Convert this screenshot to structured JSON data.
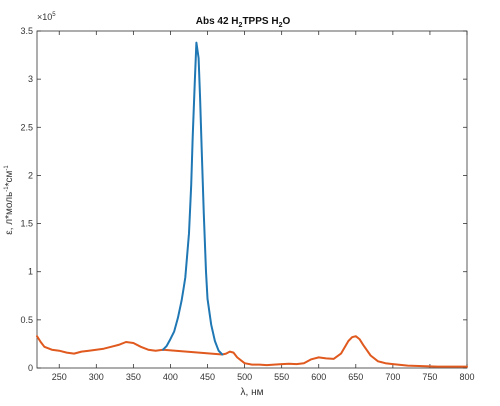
{
  "chart_data": {
    "type": "line",
    "title": {
      "prefix": "Abs 42 H",
      "sub1": "2",
      "middle": "TPPS H",
      "sub2": "2",
      "suffix": "O"
    },
    "xlabel": "λ, нм",
    "ylabel": {
      "part1": "ε, л*моль",
      "sup1": "-1",
      "part2": "*см",
      "sup2": "-1"
    },
    "y_multiplier": {
      "base": "×10",
      "exponent": "5"
    },
    "xlim": [
      220,
      800
    ],
    "ylim": [
      0,
      350000
    ],
    "x_ticks": [
      250,
      300,
      350,
      400,
      450,
      500,
      550,
      600,
      650,
      700,
      750,
      800
    ],
    "x_tick_labels": [
      "250",
      "300",
      "350",
      "400",
      "450",
      "500",
      "550",
      "600",
      "650",
      "700",
      "750",
      "800"
    ],
    "y_ticks": [
      0,
      50000,
      100000,
      150000,
      200000,
      250000,
      300000,
      350000
    ],
    "y_tick_labels": [
      "0",
      "0.5",
      "1",
      "1.5",
      "2",
      "2.5",
      "3",
      "3.5"
    ],
    "grid": false,
    "series": [
      {
        "color": "#e0591e",
        "x": [
          220,
          225,
          230,
          240,
          250,
          260,
          270,
          280,
          290,
          300,
          310,
          320,
          330,
          340,
          350,
          360,
          370,
          380,
          390,
          470,
          475,
          480,
          485,
          490,
          500,
          510,
          520,
          530,
          540,
          550,
          560,
          570,
          580,
          590,
          600,
          610,
          620,
          630,
          640,
          645,
          650,
          655,
          660,
          670,
          680,
          690,
          700,
          720,
          740,
          760,
          780,
          800
        ],
        "y": [
          33000,
          27000,
          22000,
          19000,
          18000,
          16000,
          15000,
          17000,
          18000,
          19000,
          20000,
          22000,
          24000,
          27000,
          26000,
          22000,
          19000,
          18000,
          19000,
          14000,
          15000,
          17000,
          16000,
          11000,
          5000,
          3500,
          3500,
          3000,
          3500,
          4000,
          4500,
          4000,
          5000,
          9000,
          11000,
          10000,
          9500,
          15000,
          28000,
          32000,
          33000,
          30000,
          24000,
          13000,
          7000,
          5000,
          4000,
          2500,
          2000,
          1500,
          1500,
          1500
        ]
      },
      {
        "color": "#1f77b4",
        "x": [
          390,
          395,
          400,
          405,
          410,
          415,
          418,
          420,
          425,
          428,
          430,
          433,
          435,
          438,
          440,
          442,
          445,
          448,
          450,
          455,
          460,
          465,
          470
        ],
        "y": [
          19000,
          23000,
          30000,
          38000,
          52000,
          70000,
          84000,
          94000,
          140000,
          190000,
          240000,
          300000,
          338000,
          322000,
          280000,
          230000,
          160000,
          100000,
          72000,
          45000,
          28000,
          18000,
          14000
        ]
      }
    ]
  }
}
